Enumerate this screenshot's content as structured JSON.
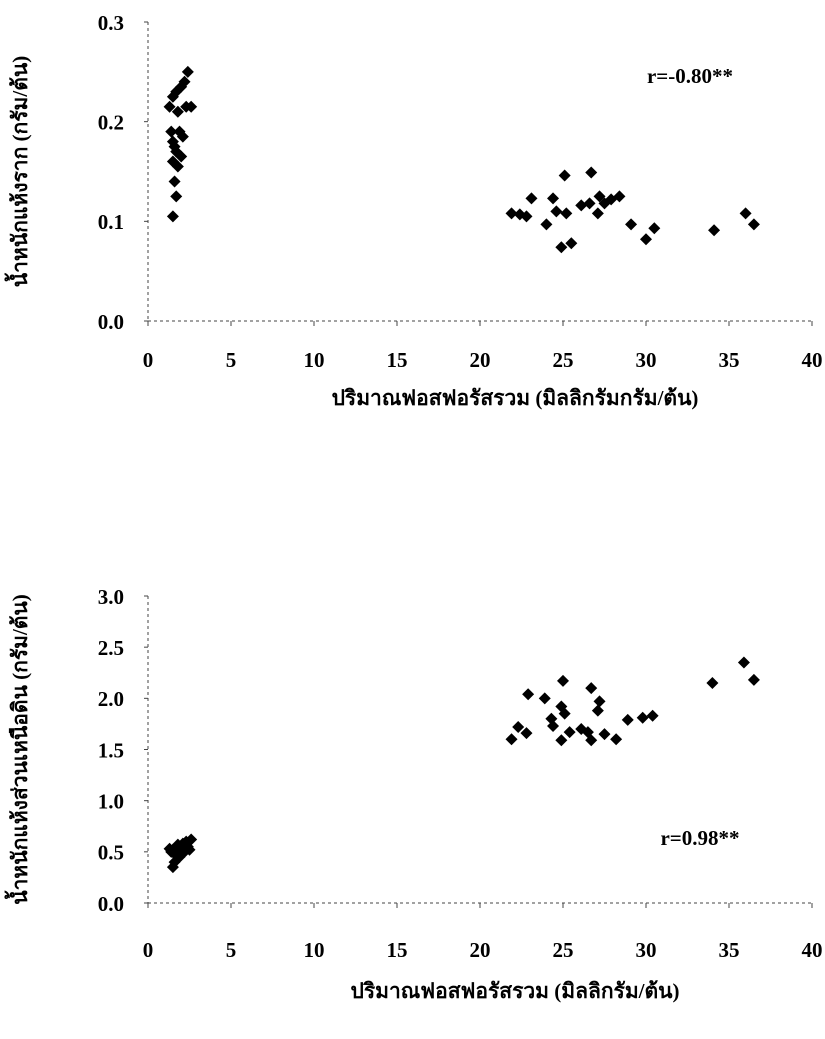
{
  "chart_data": [
    {
      "type": "scatter",
      "annotation": "r=-0.80**",
      "x_label": "ปริมาณฟอสฟอรัสรวม (มิลลิกรัมกรัม/ต้น)",
      "y_label": "น้ำหนักแห้งราก (กรัม/ต้น)",
      "xlim": [
        0,
        40
      ],
      "xticks": [
        0,
        5,
        10,
        15,
        20,
        25,
        30,
        35,
        40
      ],
      "ylim": [
        0,
        0.3
      ],
      "yticks": [
        {
          "value": 0,
          "label": "0.0"
        },
        0.1,
        0.2,
        0.3
      ],
      "color": "#000000",
      "x": [
        1.3,
        1.5,
        1.7,
        2.0,
        2.4,
        2.6,
        2.2,
        1.4,
        1.8,
        2.1,
        1.5,
        1.9,
        1.6,
        2.3,
        1.7,
        1.5,
        2.0,
        1.8,
        1.6,
        1.7,
        1.5,
        21.9,
        22.4,
        22.8,
        23.1,
        24.0,
        24.4,
        24.6,
        24.9,
        25.1,
        25.2,
        25.5,
        26.1,
        26.6,
        26.7,
        27.1,
        27.2,
        27.5,
        27.9,
        28.4,
        29.1,
        30.0,
        30.5,
        34.1,
        36.0,
        36.5
      ],
      "values": [
        0.215,
        0.225,
        0.23,
        0.235,
        0.25,
        0.215,
        0.24,
        0.19,
        0.21,
        0.185,
        0.18,
        0.19,
        0.175,
        0.215,
        0.17,
        0.16,
        0.165,
        0.155,
        0.14,
        0.125,
        0.105,
        0.108,
        0.107,
        0.105,
        0.123,
        0.097,
        0.123,
        0.11,
        0.074,
        0.146,
        0.108,
        0.078,
        0.116,
        0.118,
        0.149,
        0.108,
        0.125,
        0.118,
        0.122,
        0.125,
        0.097,
        0.082,
        0.093,
        0.091,
        0.108,
        0.097
      ]
    },
    {
      "type": "scatter",
      "annotation": "r=0.98**",
      "x_label": "ปริมาณฟอสฟอรัสรวม (มิลลิกรัม/ต้น)",
      "y_label": "น้ำหนักแห้งส่วนเหนือดิน (กรัม/ต้น)",
      "xlim": [
        0,
        40
      ],
      "xticks": [
        0,
        5,
        10,
        15,
        20,
        25,
        30,
        35,
        40
      ],
      "ylim": [
        0,
        3
      ],
      "yticks": [
        {
          "value": 0,
          "label": "0.0"
        },
        0.5,
        {
          "value": 1,
          "label": "1.0"
        },
        1.5,
        {
          "value": 2,
          "label": "2.0"
        },
        2.5,
        {
          "value": 3,
          "label": "3.0"
        }
      ],
      "color": "#000000",
      "x": [
        1.5,
        1.6,
        1.4,
        1.5,
        1.6,
        1.7,
        1.8,
        1.9,
        2.0,
        2.1,
        2.2,
        2.3,
        2.4,
        2.6,
        1.8,
        2.0,
        2.5,
        1.3,
        21.9,
        22.3,
        22.8,
        22.9,
        23.9,
        24.3,
        24.4,
        24.9,
        25.0,
        24.9,
        25.1,
        25.4,
        26.1,
        26.5,
        26.7,
        26.7,
        27.1,
        27.2,
        27.5,
        28.2,
        28.9,
        29.8,
        30.4,
        34.0,
        35.9,
        36.5
      ],
      "values": [
        0.35,
        0.4,
        0.5,
        0.52,
        0.48,
        0.55,
        0.5,
        0.45,
        0.53,
        0.58,
        0.5,
        0.6,
        0.55,
        0.62,
        0.57,
        0.48,
        0.52,
        0.53,
        1.6,
        1.72,
        1.66,
        2.04,
        2.0,
        1.8,
        1.73,
        1.92,
        2.17,
        1.59,
        1.85,
        1.67,
        1.7,
        1.67,
        1.59,
        2.1,
        1.88,
        1.97,
        1.65,
        1.6,
        1.79,
        1.81,
        1.83,
        2.15,
        2.35,
        2.18
      ]
    }
  ]
}
